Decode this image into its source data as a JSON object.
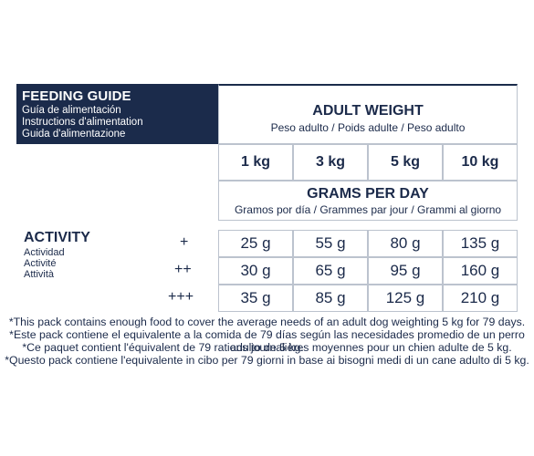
{
  "guide": {
    "title": "FEEDING GUIDE",
    "translations": [
      "Guía de alimentación",
      "Instructions d'alimentation",
      "Guida d'alimentazione"
    ]
  },
  "adult_weight": {
    "title": "ADULT WEIGHT",
    "subtitle": "Peso adulto / Poids adulte / Peso adulto"
  },
  "weights": [
    "1 kg",
    "3 kg",
    "5 kg",
    "10 kg"
  ],
  "grams_per_day": {
    "title": "GRAMS PER DAY",
    "subtitle": "Gramos por día / Grammes par jour / Grammi al giorno"
  },
  "activity": {
    "title": "ACTIVITY",
    "translations": [
      "Actividad",
      "Activité",
      "Attività"
    ]
  },
  "rows": [
    {
      "level": "+",
      "values": [
        "25 g",
        "55 g",
        "80 g",
        "135 g"
      ]
    },
    {
      "level": "++",
      "values": [
        "30 g",
        "65 g",
        "95 g",
        "160 g"
      ]
    },
    {
      "level": "+++",
      "values": [
        "35 g",
        "85 g",
        "125 g",
        "210 g"
      ]
    }
  ],
  "footnotes": [
    "*This pack contains enough food to cover the average needs of an adult dog weighting 5 kg for 79 days.",
    "*Este pack contiene el equivalente a la comida de 79 días según las necesidades promedio de un perro adulto de 5 kg.",
    "*Ce paquet contient l'équivalent de 79 rations journalières moyennes pour un chien adulte de 5 kg.",
    "*Questo pack contiene l'equivalente in cibo per 79 giorni in base ai bisogni medi di un cane adulto di 5 kg."
  ],
  "colors": {
    "navy": "#1b2b4b",
    "border": "#bcc3ce",
    "text": "#1b2a4a"
  }
}
